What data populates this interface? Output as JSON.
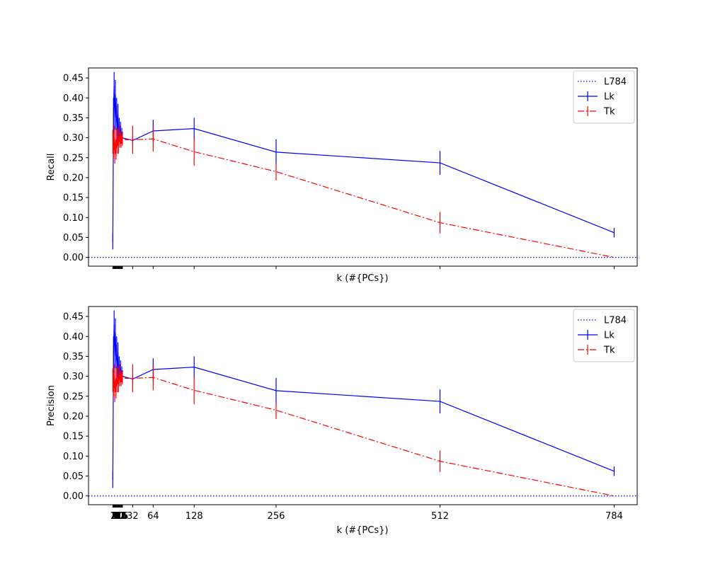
{
  "chart_data": [
    {
      "type": "line",
      "xlabel": "k (#{PCs})",
      "ylabel": "Recall",
      "ylim": [
        -0.022,
        0.475
      ],
      "xlim": [
        -37,
        820
      ],
      "show_x_tick_labels": false,
      "yticks": [
        0.0,
        0.05,
        0.1,
        0.15,
        0.2,
        0.25,
        0.3,
        0.35,
        0.4,
        0.45
      ],
      "ytick_labels": [
        "0.00",
        "0.05",
        "0.10",
        "0.15",
        "0.20",
        "0.25",
        "0.30",
        "0.35",
        "0.40",
        "0.45"
      ],
      "xticks": [
        1,
        2,
        3,
        4,
        5,
        6,
        7,
        8,
        9,
        10,
        11,
        12,
        13,
        14,
        15,
        16,
        32,
        64,
        128,
        256,
        512,
        784
      ],
      "xtick_labels": [
        "",
        "",
        "",
        "",
        "",
        "",
        "",
        "",
        "",
        "",
        "",
        "",
        "",
        "",
        "",
        "",
        "32",
        "64",
        "128",
        "256",
        "512",
        "784"
      ],
      "legend": {
        "placement": "upper right",
        "entries": [
          "L784",
          "Lk",
          "Tk"
        ]
      },
      "grid": false,
      "series": [
        {
          "name": "L784",
          "style": "dotted",
          "color": "#0000ff",
          "hline": 0.0
        },
        {
          "name": "Lk",
          "style": "solid",
          "color": "#0000ff",
          "marker": "errorbar",
          "x": [
            1,
            2,
            3,
            4,
            5,
            6,
            7,
            8,
            9,
            10,
            11,
            12,
            13,
            14,
            15,
            16,
            32,
            64,
            128,
            256,
            512,
            784
          ],
          "y": [
            0.04,
            0.36,
            0.43,
            0.35,
            0.41,
            0.35,
            0.37,
            0.32,
            0.36,
            0.31,
            0.33,
            0.31,
            0.32,
            0.3,
            0.31,
            0.3,
            0.293,
            0.317,
            0.323,
            0.264,
            0.237,
            0.062
          ],
          "err": [
            0.02,
            0.04,
            0.035,
            0.03,
            0.035,
            0.03,
            0.03,
            0.02,
            0.025,
            0.02,
            0.02,
            0.02,
            0.02,
            0.015,
            0.015,
            0.015,
            0.01,
            0.028,
            0.027,
            0.032,
            0.03,
            0.012
          ]
        },
        {
          "name": "Tk",
          "style": "dashdot",
          "color": "#ff0000",
          "marker": "errorbar",
          "x": [
            1,
            2,
            3,
            4,
            5,
            6,
            7,
            8,
            9,
            10,
            11,
            12,
            13,
            14,
            15,
            16,
            32,
            64,
            128,
            256,
            512,
            784
          ],
          "y": [
            0.29,
            0.28,
            0.3,
            0.26,
            0.29,
            0.27,
            0.3,
            0.28,
            0.3,
            0.28,
            0.31,
            0.29,
            0.3,
            0.29,
            0.3,
            0.295,
            0.295,
            0.297,
            0.265,
            0.215,
            0.087,
            0.0
          ],
          "err": [
            0.03,
            0.03,
            0.03,
            0.025,
            0.03,
            0.025,
            0.025,
            0.02,
            0.02,
            0.02,
            0.02,
            0.015,
            0.015,
            0.015,
            0.015,
            0.015,
            0.035,
            0.032,
            0.035,
            0.022,
            0.027,
            0.0
          ]
        }
      ]
    },
    {
      "type": "line",
      "xlabel": "k (#{PCs})",
      "ylabel": "Precision",
      "ylim": [
        -0.022,
        0.475
      ],
      "xlim": [
        -37,
        820
      ],
      "show_x_tick_labels": true,
      "yticks": [
        0.0,
        0.05,
        0.1,
        0.15,
        0.2,
        0.25,
        0.3,
        0.35,
        0.4,
        0.45
      ],
      "ytick_labels": [
        "0.00",
        "0.05",
        "0.10",
        "0.15",
        "0.20",
        "0.25",
        "0.30",
        "0.35",
        "0.40",
        "0.45"
      ],
      "xticks": [
        1,
        2,
        3,
        4,
        5,
        6,
        7,
        8,
        9,
        10,
        11,
        12,
        13,
        14,
        15,
        16,
        32,
        64,
        128,
        256,
        512,
        784
      ],
      "xtick_labels": [
        "1",
        "2",
        "3",
        "4",
        "5",
        "6",
        "7",
        "8",
        "9",
        "10",
        "11",
        "12",
        "13",
        "14",
        "15",
        "16",
        "32",
        "64",
        "128",
        "256",
        "512",
        "784"
      ],
      "legend": {
        "placement": "upper right",
        "entries": [
          "L784",
          "Lk",
          "Tk"
        ]
      },
      "grid": false,
      "series": [
        {
          "name": "L784",
          "style": "dotted",
          "color": "#0000ff",
          "hline": 0.0
        },
        {
          "name": "Lk",
          "style": "solid",
          "color": "#0000ff",
          "marker": "errorbar",
          "x": [
            1,
            2,
            3,
            4,
            5,
            6,
            7,
            8,
            9,
            10,
            11,
            12,
            13,
            14,
            15,
            16,
            32,
            64,
            128,
            256,
            512,
            784
          ],
          "y": [
            0.04,
            0.36,
            0.43,
            0.35,
            0.41,
            0.35,
            0.37,
            0.32,
            0.36,
            0.31,
            0.33,
            0.31,
            0.32,
            0.3,
            0.31,
            0.3,
            0.293,
            0.317,
            0.323,
            0.264,
            0.237,
            0.062
          ],
          "err": [
            0.02,
            0.04,
            0.035,
            0.03,
            0.035,
            0.03,
            0.03,
            0.02,
            0.025,
            0.02,
            0.02,
            0.02,
            0.02,
            0.015,
            0.015,
            0.015,
            0.01,
            0.028,
            0.027,
            0.032,
            0.03,
            0.012
          ]
        },
        {
          "name": "Tk",
          "style": "dashdot",
          "color": "#ff0000",
          "marker": "errorbar",
          "x": [
            1,
            2,
            3,
            4,
            5,
            6,
            7,
            8,
            9,
            10,
            11,
            12,
            13,
            14,
            15,
            16,
            32,
            64,
            128,
            256,
            512,
            784
          ],
          "y": [
            0.29,
            0.28,
            0.3,
            0.26,
            0.29,
            0.27,
            0.3,
            0.28,
            0.3,
            0.28,
            0.31,
            0.29,
            0.3,
            0.29,
            0.3,
            0.295,
            0.295,
            0.297,
            0.265,
            0.215,
            0.087,
            0.0
          ],
          "err": [
            0.03,
            0.03,
            0.03,
            0.025,
            0.03,
            0.025,
            0.025,
            0.02,
            0.02,
            0.02,
            0.02,
            0.015,
            0.015,
            0.015,
            0.015,
            0.015,
            0.035,
            0.032,
            0.035,
            0.022,
            0.027,
            0.0
          ]
        }
      ]
    }
  ]
}
